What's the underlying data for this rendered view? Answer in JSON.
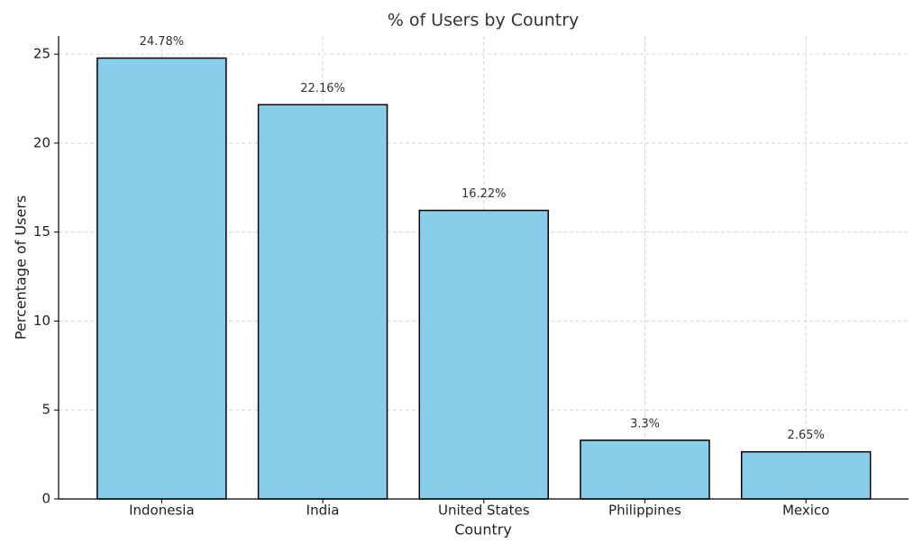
{
  "chart_data": {
    "type": "bar",
    "title": "% of Users by Country",
    "x_label": "Country",
    "y_label": "Percentage of Users",
    "categories": [
      "Indonesia",
      "India",
      "United States",
      "Philippines",
      "Mexico"
    ],
    "values": [
      24.78,
      22.16,
      16.22,
      3.3,
      2.65
    ],
    "value_labels": [
      "24.78%",
      "22.16%",
      "16.22%",
      "3.3%",
      "2.65%"
    ],
    "color": "#87ceeb",
    "edge_color": "#000000",
    "ylim": [
      0,
      26.02
    ],
    "yticks": [
      0,
      5,
      10,
      15,
      20,
      25
    ],
    "grid": true
  }
}
